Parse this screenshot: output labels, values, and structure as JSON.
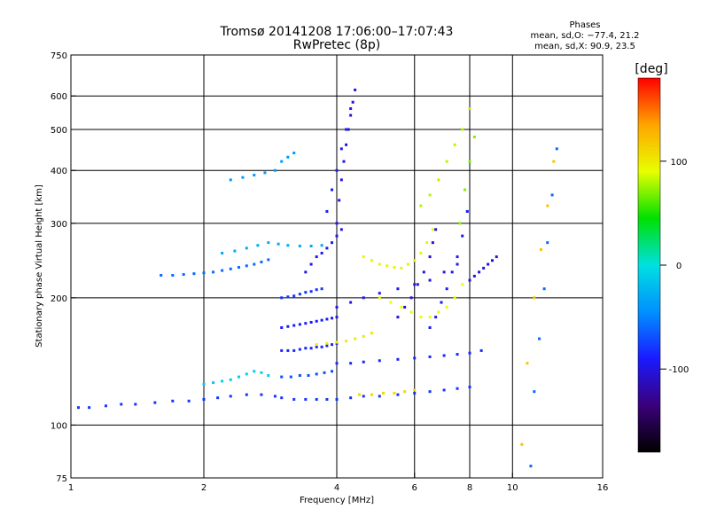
{
  "chart_data": {
    "type": "scatter",
    "title_line1": "Tromsø 20141208 17:06:00–17:07:43",
    "title_line2": "RwPretec (8p)",
    "phases": {
      "header": "Phases",
      "line_o": "mean, sd,O: −77.4, 21.2",
      "line_x": "mean, sd,X:  90.9, 23.5"
    },
    "xlabel": "Frequency [MHz]",
    "ylabel": "Stationary phase Virtual Height [km]",
    "xscale": "log",
    "yscale": "log",
    "xlim": [
      1,
      16
    ],
    "ylim": [
      75,
      750
    ],
    "xticks": [
      1,
      2,
      4,
      6,
      8,
      10,
      16
    ],
    "yticks": [
      75,
      100,
      200,
      300,
      400,
      500,
      600,
      750
    ],
    "grid_x": [
      2,
      4,
      6,
      8,
      10
    ],
    "grid_y": [
      100,
      200,
      300,
      400,
      500,
      600
    ],
    "colorbar": {
      "label": "[deg]",
      "range": [
        -180,
        180
      ],
      "ticks": [
        100,
        0,
        -100
      ],
      "colormap": [
        "#000000",
        "#3a007a",
        "#1a1aff",
        "#0090ff",
        "#00e0e0",
        "#00e000",
        "#e8ff00",
        "#ffa500",
        "#ff0000"
      ]
    },
    "series": [
      {
        "x": [
          1.04,
          1.1,
          1.2,
          1.3,
          1.4,
          1.55,
          1.7,
          1.85,
          2.0,
          2.15,
          2.3,
          2.5,
          2.7,
          2.9,
          3.0,
          3.2,
          3.4,
          3.6,
          3.8
        ],
        "y": [
          110,
          110,
          111,
          112,
          112,
          113,
          114,
          114,
          115,
          116,
          117,
          118,
          118,
          117,
          116,
          115,
          115,
          115,
          115
        ],
        "phase": -80
      },
      {
        "x": [
          2.0,
          2.1,
          2.2,
          2.3,
          2.4,
          2.5,
          2.6,
          2.7,
          2.8
        ],
        "y": [
          125,
          126,
          127,
          128,
          130,
          132,
          134,
          133,
          131
        ],
        "phase": -10
      },
      {
        "x": [
          1.6,
          1.7,
          1.8,
          1.9,
          2.0,
          2.1,
          2.2,
          2.3,
          2.4,
          2.5,
          2.6,
          2.7,
          2.8
        ],
        "y": [
          226,
          226,
          227,
          228,
          229,
          230,
          232,
          234,
          236,
          238,
          240,
          243,
          246
        ],
        "phase": -60
      },
      {
        "x": [
          2.2,
          2.35,
          2.5,
          2.65,
          2.8,
          2.95,
          3.1,
          3.3,
          3.5,
          3.7
        ],
        "y": [
          255,
          258,
          262,
          266,
          270,
          268,
          266,
          265,
          265,
          266
        ],
        "phase": -30
      },
      {
        "x": [
          2.3,
          2.45,
          2.6,
          2.75,
          2.9,
          3.0,
          3.1,
          3.2
        ],
        "y": [
          380,
          385,
          390,
          395,
          400,
          420,
          430,
          440
        ],
        "phase": -40
      },
      {
        "x": [
          3.0,
          3.1,
          3.2,
          3.3,
          3.4,
          3.5,
          3.6,
          3.7,
          3.8,
          3.9,
          4.0
        ],
        "y": [
          150,
          150,
          150,
          151,
          152,
          152,
          153,
          153,
          154,
          155,
          156
        ],
        "phase": -85
      },
      {
        "x": [
          3.0,
          3.1,
          3.2,
          3.3,
          3.4,
          3.5,
          3.6,
          3.7,
          3.8,
          3.9,
          4.0
        ],
        "y": [
          170,
          171,
          172,
          173,
          174,
          175,
          176,
          177,
          178,
          179,
          180
        ],
        "phase": -90
      },
      {
        "x": [
          3.0,
          3.1,
          3.2,
          3.3,
          3.4,
          3.5,
          3.6,
          3.7
        ],
        "y": [
          200,
          201,
          202,
          204,
          206,
          207,
          209,
          210
        ],
        "phase": -80
      },
      {
        "x": [
          3.0,
          3.15,
          3.3,
          3.45,
          3.6,
          3.75,
          3.9
        ],
        "y": [
          130,
          130,
          131,
          131,
          132,
          133,
          134
        ],
        "phase": -70
      },
      {
        "x": [
          3.4,
          3.5,
          3.6,
          3.7,
          3.8,
          3.9,
          4.0,
          4.1
        ],
        "y": [
          230,
          240,
          250,
          255,
          262,
          270,
          280,
          290
        ],
        "phase": -95
      },
      {
        "x": [
          4.0,
          4.05,
          4.1,
          4.15,
          4.2,
          4.25,
          4.3,
          4.35,
          4.4
        ],
        "y": [
          300,
          340,
          380,
          420,
          460,
          500,
          540,
          580,
          620
        ],
        "phase": -100
      },
      {
        "x": [
          3.8,
          3.9,
          4.0,
          4.1,
          4.2,
          4.3
        ],
        "y": [
          320,
          360,
          400,
          450,
          500,
          560
        ],
        "phase": -90
      },
      {
        "x": [
          4.0,
          4.3,
          4.6,
          5.0,
          5.5,
          6.0,
          6.5,
          7.0,
          7.5,
          8.0
        ],
        "y": [
          115,
          116,
          117,
          117,
          118,
          119,
          120,
          121,
          122,
          123
        ],
        "phase": -80
      },
      {
        "x": [
          4.0,
          4.3,
          4.6,
          5.0,
          5.5,
          6.0,
          6.5,
          7.0,
          7.5,
          8.0,
          8.5
        ],
        "y": [
          140,
          140,
          141,
          142,
          143,
          144,
          145,
          146,
          147,
          148,
          150
        ],
        "phase": -85
      },
      {
        "x": [
          4.0,
          4.3,
          4.6,
          5.0,
          5.5,
          6.0,
          6.5,
          7.0,
          7.5
        ],
        "y": [
          190,
          195,
          200,
          205,
          210,
          215,
          220,
          230,
          240
        ],
        "phase": -95
      },
      {
        "x": [
          5.5,
          5.7,
          5.9,
          6.1,
          6.3,
          6.5,
          6.6,
          6.7
        ],
        "y": [
          180,
          190,
          200,
          215,
          230,
          250,
          270,
          290
        ],
        "phase": -100
      },
      {
        "x": [
          6.5,
          6.7,
          6.9,
          7.1,
          7.3,
          7.5,
          7.7,
          7.9
        ],
        "y": [
          170,
          180,
          195,
          210,
          230,
          250,
          280,
          320
        ],
        "phase": -95
      },
      {
        "x": [
          8.0,
          8.2,
          8.4,
          8.6,
          8.8,
          9.0,
          9.2
        ],
        "y": [
          220,
          225,
          230,
          235,
          240,
          245,
          250
        ],
        "phase": -100
      },
      {
        "x": [
          4.6,
          4.8,
          5.0,
          5.2,
          5.4,
          5.6,
          5.8,
          6.0,
          6.2,
          6.4,
          6.6
        ],
        "y": [
          250,
          245,
          240,
          238,
          236,
          235,
          240,
          245,
          255,
          270,
          290
        ],
        "phase": 95
      },
      {
        "x": [
          5.0,
          5.3,
          5.6,
          5.9,
          6.2,
          6.5,
          6.8,
          7.1,
          7.4,
          7.7
        ],
        "y": [
          200,
          195,
          190,
          185,
          180,
          180,
          185,
          190,
          200,
          215
        ],
        "phase": 90
      },
      {
        "x": [
          3.6,
          3.8,
          4.0,
          4.2,
          4.4,
          4.6,
          4.8
        ],
        "y": [
          155,
          156,
          157,
          158,
          160,
          162,
          165
        ],
        "phase": 100
      },
      {
        "x": [
          4.5,
          4.8,
          5.1,
          5.4,
          5.7,
          6.0
        ],
        "y": [
          118,
          118,
          119,
          119,
          120,
          121
        ],
        "phase": 110
      },
      {
        "x": [
          6.2,
          6.5,
          6.8,
          7.1,
          7.4,
          7.7,
          8.0
        ],
        "y": [
          330,
          350,
          380,
          420,
          460,
          500,
          560
        ],
        "phase": 80
      },
      {
        "x": [
          7.6,
          7.8,
          8.0,
          8.2
        ],
        "y": [
          300,
          360,
          420,
          480
        ],
        "phase": 70
      },
      {
        "x": [
          11.0,
          11.2,
          11.5,
          11.8,
          12.0,
          12.3,
          12.6
        ],
        "y": [
          80,
          120,
          160,
          210,
          270,
          350,
          450
        ],
        "phase": -60
      },
      {
        "x": [
          10.5,
          10.8,
          11.2,
          11.6,
          12.0,
          12.4
        ],
        "y": [
          90,
          140,
          200,
          260,
          330,
          420
        ],
        "phase": 120
      }
    ]
  }
}
